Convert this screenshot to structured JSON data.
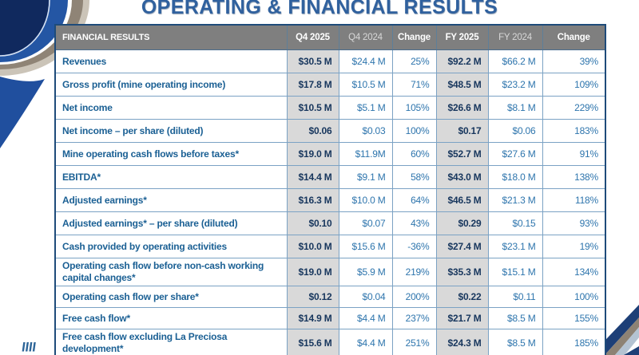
{
  "slide": {
    "title": "OPERATING & FINANCIAL RESULTS"
  },
  "table": {
    "columns": [
      "FINANCIAL RESULTS",
      "Q4 2025",
      "Q4 2024",
      "Change",
      "FY 2025",
      "FY 2024",
      "Change"
    ],
    "highlight_value_columns": [
      0,
      3
    ],
    "rows": [
      {
        "label": "Revenues",
        "values": [
          "$30.5 M",
          "$24.4 M",
          "25%",
          "$92.2 M",
          "$66.2 M",
          "39%"
        ]
      },
      {
        "label": "Gross profit (mine operating income)",
        "values": [
          "$17.8 M",
          "$10.5 M",
          "71%",
          "$48.5 M",
          "$23.2 M",
          "109%"
        ]
      },
      {
        "label": "Net income",
        "values": [
          "$10.5 M",
          "$5.1 M",
          "105%",
          "$26.6 M",
          "$8.1 M",
          "229%"
        ]
      },
      {
        "label": "Net income – per share (diluted)",
        "values": [
          "$0.06",
          "$0.03",
          "100%",
          "$0.17",
          "$0.06",
          "183%"
        ]
      },
      {
        "label": "Mine operating cash flows before taxes*",
        "values": [
          "$19.0 M",
          "$11.9M",
          "60%",
          "$52.7 M",
          "$27.6 M",
          "91%"
        ]
      },
      {
        "label": "EBITDA*",
        "values": [
          "$14.4 M",
          "$9.1 M",
          "58%",
          "$43.0 M",
          "$18.0 M",
          "138%"
        ]
      },
      {
        "label": "Adjusted earnings*",
        "values": [
          "$16.3 M",
          "$10.0 M",
          "64%",
          "$46.5 M",
          "$21.3 M",
          "118%"
        ]
      },
      {
        "label": "Adjusted earnings* – per share (diluted)",
        "values": [
          "$0.10",
          "$0.07",
          "43%",
          "$0.29",
          "$0.15",
          "93%"
        ]
      },
      {
        "label": "Cash provided by operating activities",
        "values": [
          "$10.0 M",
          "$15.6 M",
          "-36%",
          "$27.4 M",
          "$23.1 M",
          "19%"
        ]
      },
      {
        "label": "Operating cash flow before non-cash working capital changes*",
        "values": [
          "$19.0 M",
          "$5.9 M",
          "219%",
          "$35.3 M",
          "$15.1 M",
          "134%"
        ]
      },
      {
        "label": "Operating cash flow per share*",
        "values": [
          "$0.12",
          "$0.04",
          "200%",
          "$0.22",
          "$0.11",
          "100%"
        ]
      },
      {
        "label": "Free cash flow*",
        "values": [
          "$14.9 M",
          "$4.4 M",
          "237%",
          "$21.7 M",
          "$8.5 M",
          "155%"
        ]
      },
      {
        "label": "Free cash flow excluding La Preciosa development*",
        "values": [
          "$15.6 M",
          "$4.4 M",
          "251%",
          "$24.3 M",
          "$8.5 M",
          "185%"
        ]
      }
    ]
  },
  "colors": {
    "title_blue": "#30619e",
    "header_bg": "#7f7f7f",
    "header_text": "#ffffff",
    "header_text_dim": "#d8d8d8",
    "row_label_blue": "#1b6094",
    "value_blue": "#2e75ad",
    "highlight_value_navy": "#17365d",
    "highlight_bg": "#d9d9d9",
    "grid_line": "#7ba2c4",
    "outer_border": "#1e4b7a",
    "swoosh_navy": "#10295e",
    "swoosh_royal": "#2456a4",
    "swoosh_taupe": "#8f8476",
    "swoosh_silver": "#cbc4b8",
    "stripe_light_blue": "#b4c3d2"
  }
}
